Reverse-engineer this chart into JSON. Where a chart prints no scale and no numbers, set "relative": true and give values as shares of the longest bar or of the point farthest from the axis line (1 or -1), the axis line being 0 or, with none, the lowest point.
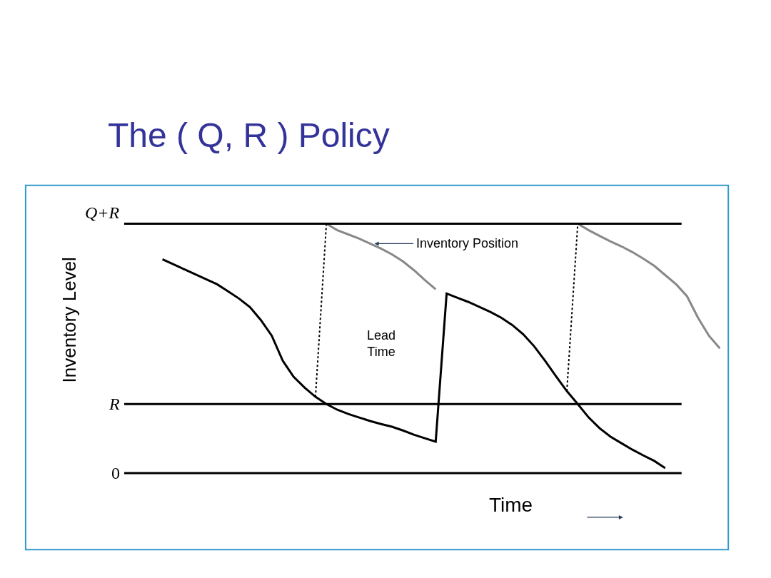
{
  "chart_data": {
    "type": "line",
    "title": "The ( Q, R ) Policy",
    "xlabel": "Time",
    "ylabel": "Inventory Level",
    "relative": true,
    "categories": [
      null,
      null,
      null,
      null,
      null,
      null,
      null,
      null,
      null,
      null,
      null,
      null,
      null,
      null,
      null,
      null,
      null,
      null,
      null,
      null,
      null,
      null,
      null,
      null,
      null,
      null,
      null,
      null,
      null,
      null,
      null,
      null,
      null,
      null,
      null,
      null,
      null,
      null,
      null,
      null,
      null,
      null,
      null,
      null,
      null,
      null,
      null,
      null,
      null,
      null,
      null,
      null,
      null,
      null,
      null
    ],
    "series": [
      {
        "color": "#000000",
        "line_style": "solid",
        "values": [
          null,
          null,
          null,
          0.857,
          0.837,
          0.817,
          0.797,
          0.777,
          0.757,
          0.729,
          0.7,
          0.666,
          0.614,
          0.551,
          0.451,
          0.386,
          0.343,
          0.306,
          0.277,
          0.254,
          0.237,
          0.223,
          0.209,
          0.197,
          0.186,
          0.171,
          0.154,
          0.14,
          0.126,
          0.72,
          0.703,
          0.686,
          0.666,
          0.646,
          0.623,
          0.594,
          0.557,
          0.509,
          0.451,
          0.389,
          0.329,
          0.277,
          0.223,
          0.18,
          0.146,
          0.12,
          0.094,
          0.071,
          0.049,
          0.02,
          null,
          null,
          null,
          null,
          null
        ]
      },
      {
        "color": "#888888",
        "line_style": "solid",
        "values": [
          null,
          null,
          null,
          null,
          null,
          null,
          null,
          null,
          null,
          null,
          null,
          null,
          null,
          null,
          null,
          null,
          null,
          null,
          1.0,
          0.974,
          0.957,
          0.94,
          0.92,
          0.9,
          0.877,
          0.849,
          0.814,
          0.774,
          0.737,
          null,
          null,
          null,
          null,
          null,
          null,
          null,
          null,
          null,
          null,
          null,
          null,
          1.0,
          0.974,
          0.951,
          0.929,
          0.909,
          0.886,
          0.86,
          0.831,
          0.794,
          0.757,
          0.709,
          0.623,
          0.551,
          0.5
        ]
      },
      {
        "color": "#000000",
        "line_style": "dotted",
        "values": [
          null,
          null,
          null,
          null,
          null,
          null,
          null,
          null,
          null,
          null,
          null,
          null,
          null,
          null,
          null,
          null,
          null,
          0.306,
          1.0,
          null,
          null,
          null,
          null,
          null,
          null,
          null,
          null,
          null,
          null,
          null,
          null,
          null,
          null,
          null,
          null,
          null,
          null,
          null,
          null,
          null,
          0.329,
          1.0,
          null,
          null,
          null,
          null,
          null,
          null,
          null,
          null,
          null,
          null,
          null,
          null,
          null
        ]
      }
    ],
    "ref_lines": [
      {
        "axis": "y",
        "value": 1.0,
        "label": "Q+R",
        "color": "#000000"
      },
      {
        "axis": "y",
        "value": 0.277,
        "label": "R",
        "color": "#000000"
      },
      {
        "axis": "y",
        "value": 0,
        "label": "0",
        "color": "#000000"
      }
    ],
    "annotations": [
      "Inventory Position",
      "Lead Time"
    ]
  }
}
